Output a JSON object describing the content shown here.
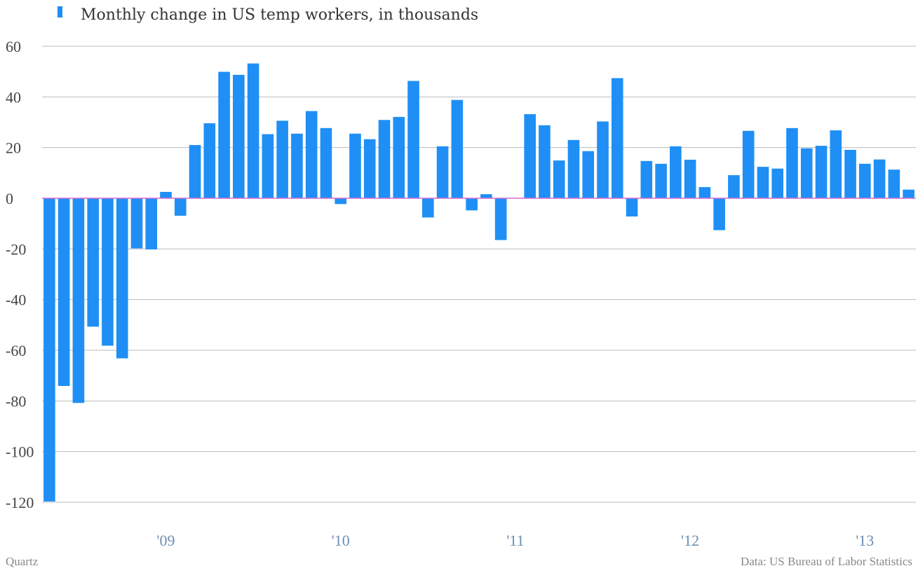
{
  "legend": {
    "label": "Monthly change in US temp workers, in thousands",
    "color": "#1f8ff5"
  },
  "footer": {
    "source_left": "Quartz",
    "source_right": "Data: US Bureau of Labor Statistics"
  },
  "colors": {
    "bar": "#1f8ff5",
    "zero_line": "#d46bd4",
    "grid": "#bbbbbb",
    "y_tick": "#444444",
    "x_tick": "#6b8fb5"
  },
  "chart_data": {
    "type": "bar",
    "title": "",
    "xlabel": "",
    "ylabel": "",
    "ylim": [
      -120,
      60
    ],
    "yticks": [
      60,
      40,
      20,
      0,
      -20,
      -40,
      -60,
      -80,
      -100,
      -120
    ],
    "grid": true,
    "legend_position": "top-left",
    "x_tick_labels": [
      {
        "label": "'09",
        "index": 8
      },
      {
        "label": "'10",
        "index": 20
      },
      {
        "label": "'11",
        "index": 32
      },
      {
        "label": "'12",
        "index": 44
      },
      {
        "label": "'13",
        "index": 56
      }
    ],
    "series": [
      {
        "name": "Monthly change in US temp workers, in thousands",
        "values": [
          -119.7,
          -74.1,
          -80.8,
          -50.7,
          -58.2,
          -63.2,
          -19.8,
          -20.2,
          2.5,
          -6.9,
          21.0,
          29.6,
          49.9,
          48.7,
          53.2,
          25.3,
          30.6,
          25.5,
          34.4,
          27.7,
          -2.3,
          25.5,
          23.3,
          30.9,
          32.1,
          46.3,
          -7.6,
          20.5,
          38.8,
          -4.8,
          1.6,
          -16.5,
          0,
          33.2,
          28.8,
          14.9,
          23.0,
          18.6,
          30.3,
          47.4,
          -7.2,
          14.7,
          13.6,
          20.5,
          15.2,
          4.4,
          -12.6,
          9.1,
          26.6,
          12.4,
          11.7,
          27.7,
          19.7,
          20.7,
          26.8,
          19.1,
          13.6,
          15.3,
          11.3,
          3.4
        ]
      }
    ]
  }
}
